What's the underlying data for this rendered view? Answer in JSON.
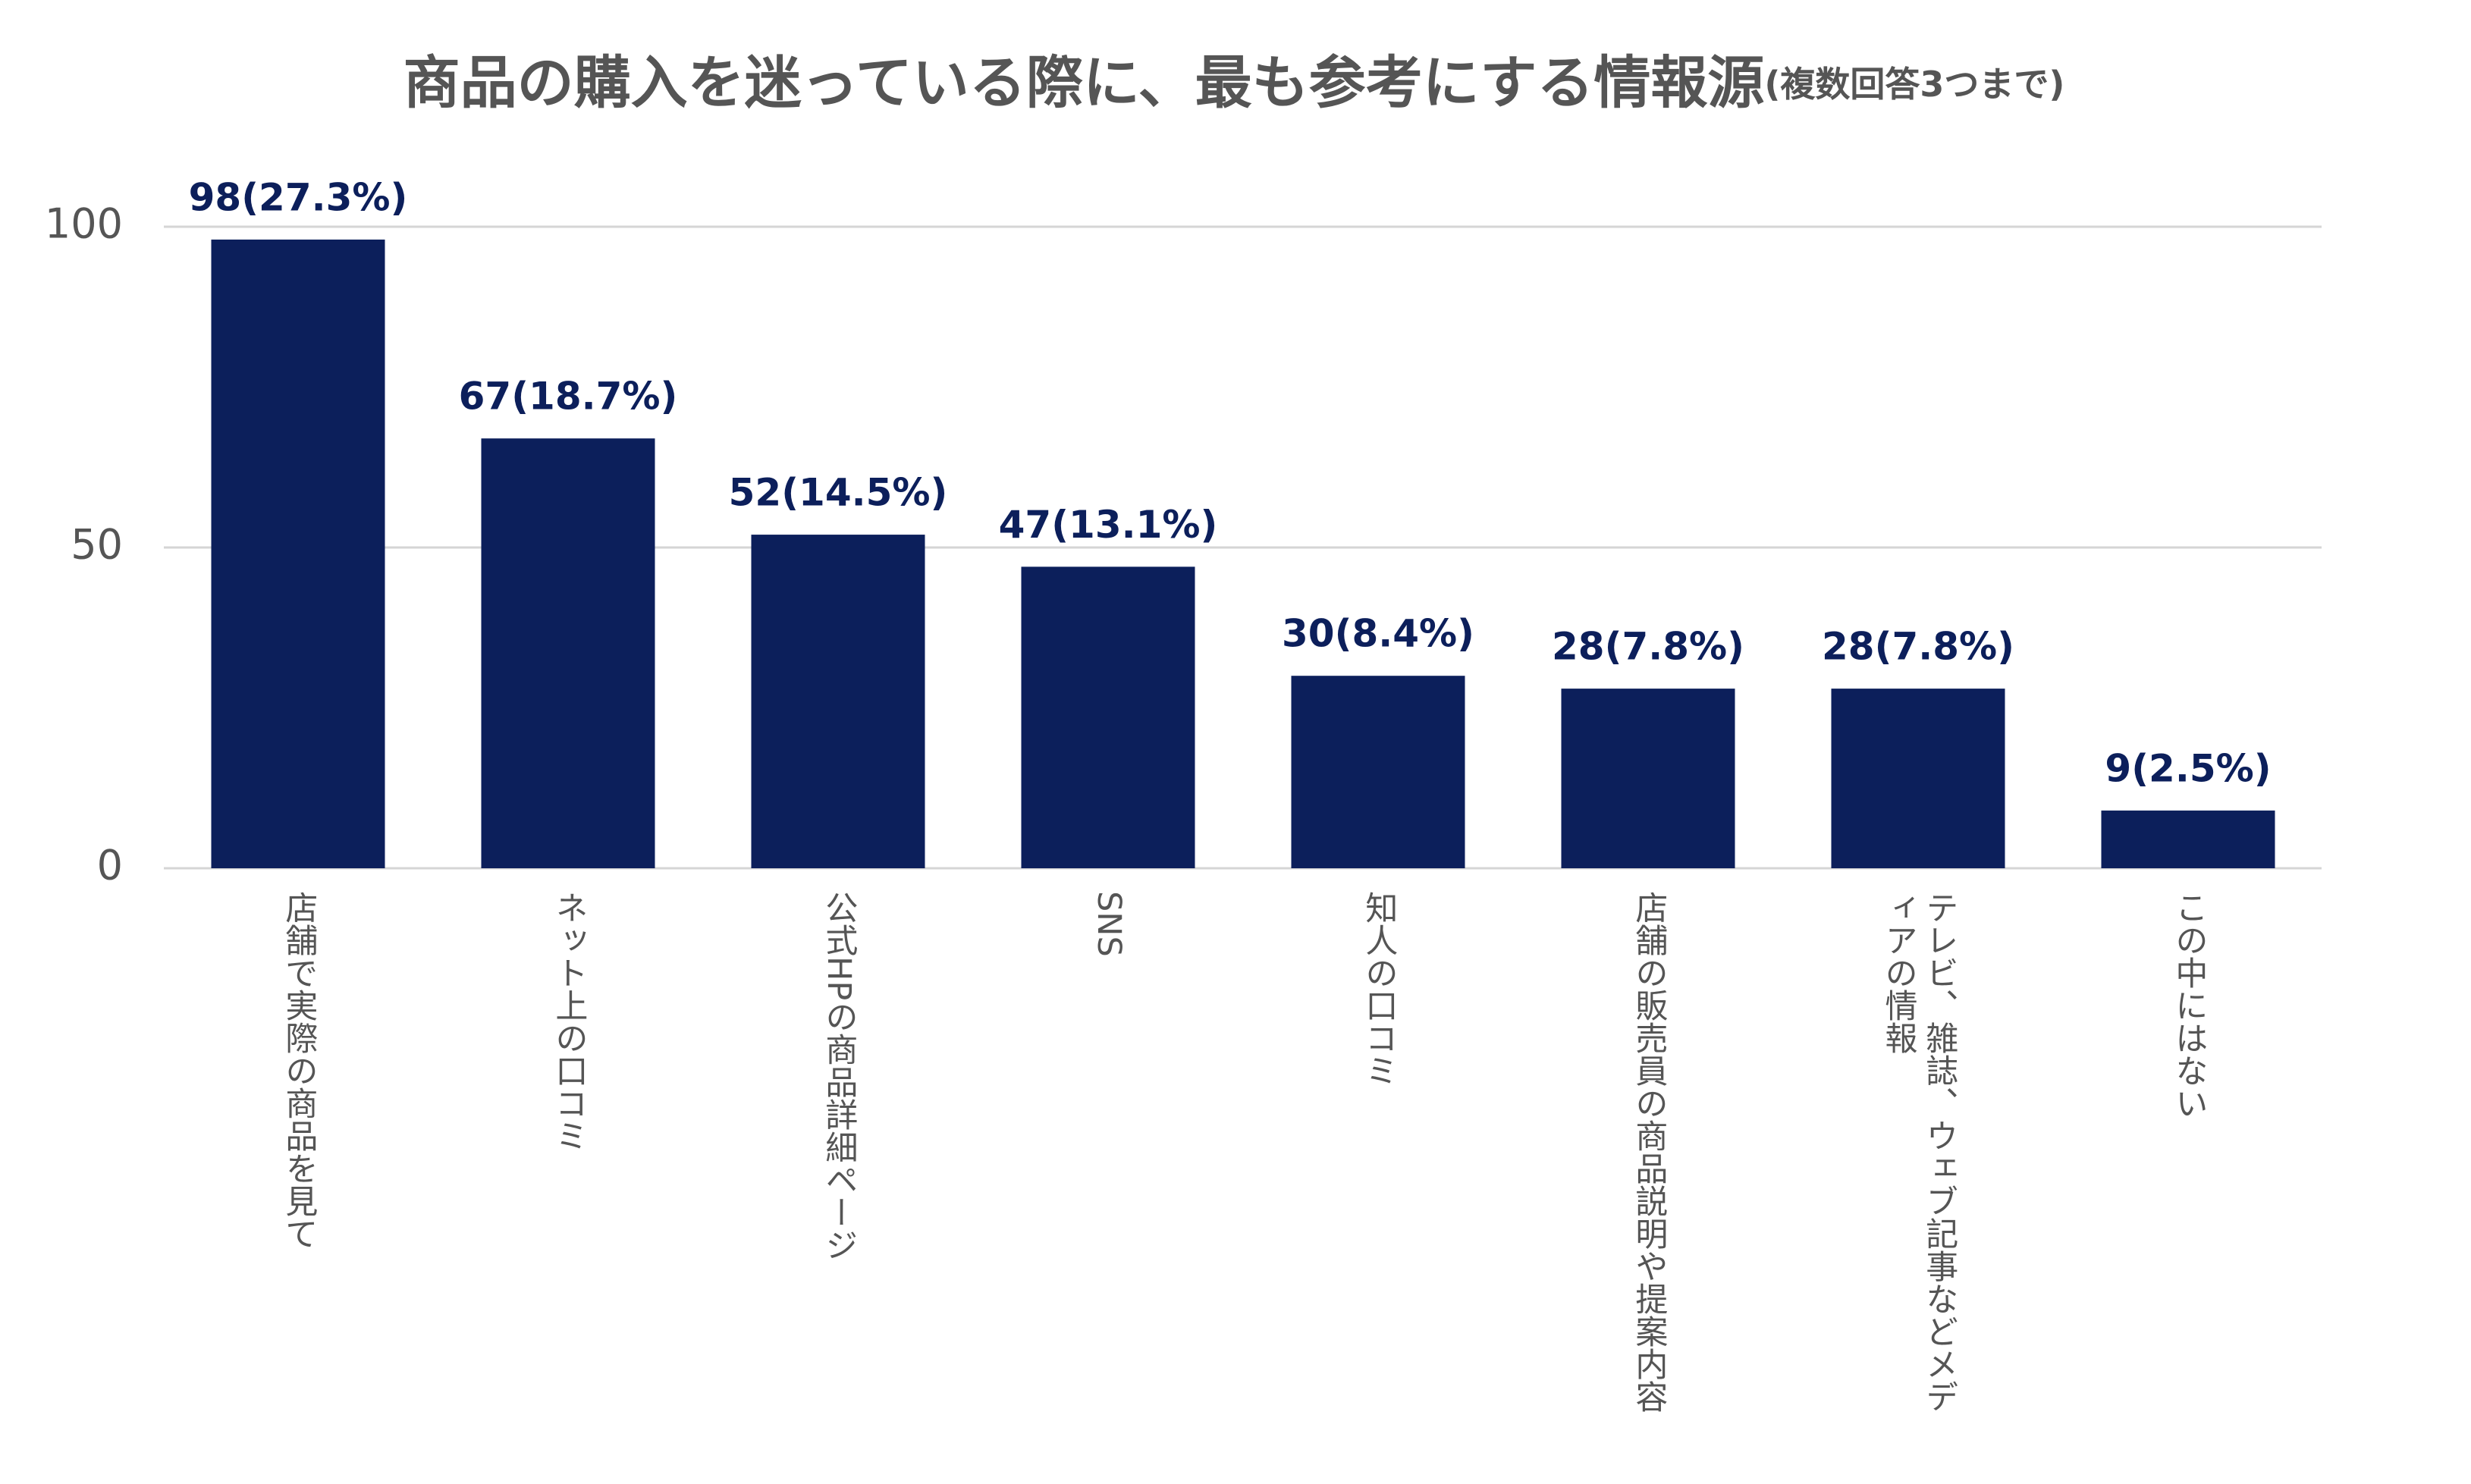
{
  "chart_data": {
    "type": "bar",
    "title": "商品の購入を迷っている際に、最も参考にする情報源",
    "subtitle": "(複数回答3つまで)",
    "categories": [
      "店舗で実際の商品を見て",
      "ネット上の口コミ",
      "公式HPの商品詳細ページ",
      "SNS",
      "知人の口コミ",
      "店舗の販売員の商品説明や提案内容",
      "テレビ、雑誌、ウェブ記事などメディアの情報",
      "この中にはない"
    ],
    "values": [
      98,
      67,
      52,
      47,
      30,
      28,
      28,
      9
    ],
    "value_labels": [
      "98(27.3%)",
      "67(18.7%)",
      "52(14.5%)",
      "47(13.1%)",
      "30(8.4%)",
      "28(7.8%)",
      "28(7.8%)",
      "9(2.5%)"
    ],
    "color": "#0c1f5b",
    "ylim": [
      0,
      100
    ],
    "yticks": [
      0,
      50,
      100
    ],
    "grid": true
  }
}
